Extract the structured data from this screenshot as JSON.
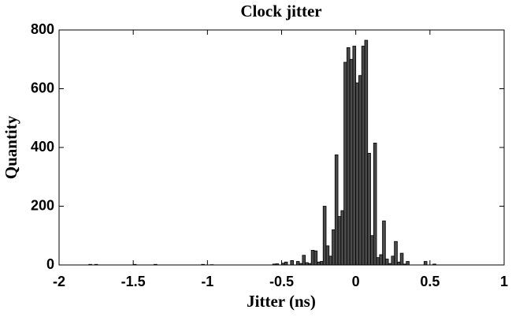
{
  "chart_data": {
    "type": "histogram",
    "title": "Clock jitter",
    "xlabel": "Jitter (ns)",
    "ylabel": "Quantity",
    "bins": [
      -1.8,
      -1.78,
      -1.76,
      -1.74,
      -1.72,
      -1.7,
      -1.68,
      -1.66,
      -1.64,
      -1.62,
      -1.6,
      -1.58,
      -1.56,
      -1.54,
      -1.52,
      -1.5,
      -1.48,
      -1.46,
      -1.44,
      -1.42,
      -1.4,
      -1.38,
      -1.36,
      -1.34,
      -1.32,
      -1.3,
      -1.28,
      -1.26,
      -1.24,
      -1.22,
      -1.2,
      -1.18,
      -1.16,
      -1.14,
      -1.12,
      -1.1,
      -1.08,
      -1.06,
      -1.04,
      -1.02,
      -1.0,
      -0.98,
      -0.96,
      -0.94,
      -0.92,
      -0.9,
      -0.88,
      -0.86,
      -0.84,
      -0.82,
      -0.8,
      -0.78,
      -0.76,
      -0.74,
      -0.72,
      -0.7,
      -0.68,
      -0.66,
      -0.64,
      -0.62,
      -0.6,
      -0.58,
      -0.56,
      -0.54,
      -0.52,
      -0.5,
      -0.48,
      -0.46,
      -0.44,
      -0.42,
      -0.4,
      -0.38,
      -0.36,
      -0.34,
      -0.32,
      -0.3,
      -0.28,
      -0.26,
      -0.24,
      -0.22,
      -0.2,
      -0.18,
      -0.16,
      -0.14,
      -0.12,
      -0.1,
      -0.08,
      -0.06,
      -0.04,
      -0.02,
      0,
      0.02,
      0.04,
      0.06,
      0.08,
      0.1,
      0.12,
      0.14,
      0.16,
      0.18,
      0.2,
      0.22,
      0.24,
      0.26,
      0.28,
      0.3,
      0.32,
      0.34,
      0.36,
      0.38,
      0.4,
      0.42,
      0.44,
      0.46,
      0.48,
      0.5,
      0.52,
      0.54,
      0.56,
      0.58,
      0.6
    ],
    "counts": [
      2,
      0,
      2,
      0,
      0,
      0,
      0,
      0,
      0,
      0,
      0,
      0,
      0,
      0,
      0,
      2,
      0,
      0,
      0,
      0,
      0,
      0,
      2,
      0,
      0,
      0,
      0,
      0,
      0,
      0,
      0,
      0,
      0,
      0,
      0,
      0,
      0,
      0,
      2,
      0,
      0,
      1,
      0,
      0,
      0,
      0,
      0,
      0,
      0,
      0,
      0,
      0,
      0,
      0,
      0,
      0,
      0,
      0,
      0,
      0,
      0,
      0,
      3,
      4,
      0,
      6,
      10,
      0,
      15,
      0,
      12,
      5,
      33,
      8,
      5,
      50,
      48,
      10,
      12,
      200,
      65,
      30,
      120,
      375,
      165,
      185,
      690,
      740,
      700,
      745,
      620,
      645,
      745,
      765,
      380,
      100,
      415,
      25,
      35,
      150,
      20,
      5,
      30,
      80,
      10,
      40,
      3,
      12,
      0,
      0,
      0,
      0,
      0,
      12,
      0,
      0,
      3,
      0,
      0,
      0
    ],
    "color": "#4a4a4a",
    "xlim": [
      -2,
      1
    ],
    "ylim": [
      0,
      800
    ],
    "xticks": [
      -2,
      -1.5,
      -1,
      -0.5,
      0,
      0.5,
      1
    ],
    "yticks": [
      0,
      200,
      400,
      600,
      800
    ]
  }
}
